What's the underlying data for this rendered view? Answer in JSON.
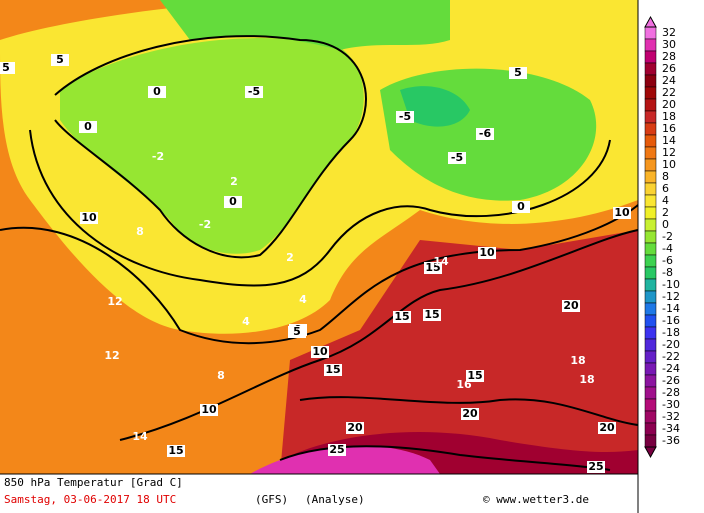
{
  "footer": {
    "title": "850 hPa Temperatur [Grad C]",
    "date": "Samstag, 03-06-2017  18 UTC",
    "model": "(GFS)",
    "run": "(Analyse)",
    "credit": "© www.wetter3.de"
  },
  "legend": {
    "labels": [
      32,
      30,
      28,
      26,
      24,
      22,
      20,
      18,
      16,
      14,
      12,
      10,
      8,
      6,
      4,
      2,
      0,
      -2,
      -4,
      -6,
      -8,
      -10,
      -12,
      -14,
      -16,
      -18,
      -20,
      -22,
      -24,
      -26,
      -28,
      -30,
      -32,
      -34,
      -36
    ],
    "colors": [
      "#f070e0",
      "#e030b0",
      "#c00070",
      "#a00030",
      "#8c0010",
      "#a00808",
      "#b41414",
      "#c82828",
      "#d83c14",
      "#e65a0a",
      "#f07814",
      "#f5961e",
      "#fab428",
      "#fad232",
      "#fae632",
      "#f0f028",
      "#c8f032",
      "#96e632",
      "#64dc3c",
      "#3cd250",
      "#28c864",
      "#20b4a0",
      "#1e96c8",
      "#1e78e6",
      "#2050f0",
      "#3c32f0",
      "#5028dc",
      "#6420c8",
      "#7818b4",
      "#8c14a0",
      "#a0108c",
      "#b40c78",
      "#a00864",
      "#8c0050",
      "#780040"
    ]
  },
  "contours": [
    0,
    0,
    0,
    -5,
    -5,
    -6,
    -5,
    0,
    0,
    5,
    5,
    10,
    10,
    10,
    15,
    15,
    15,
    15,
    15,
    20,
    20,
    20,
    20,
    25,
    25,
    10,
    10,
    5,
    5,
    15,
    -2,
    -2,
    2,
    2,
    4,
    4,
    8,
    8,
    12,
    12,
    14,
    14,
    16,
    18,
    18
  ]
}
